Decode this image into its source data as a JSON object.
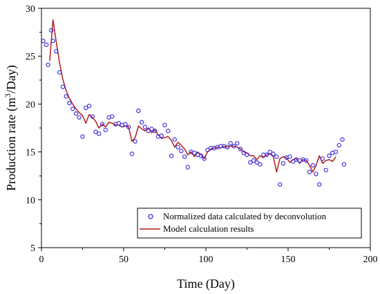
{
  "chart_data": {
    "type": "scatter",
    "xlabel": "Time (Day)",
    "ylabel": "Production rate (m³/Day)",
    "ylabel_parts": {
      "pre": "Production rate (m",
      "sup": "3",
      "post": "/Day)"
    },
    "xlim": [
      0,
      200
    ],
    "ylim": [
      5,
      30
    ],
    "xticks": [
      0,
      50,
      100,
      150,
      200
    ],
    "yticks": [
      5,
      10,
      15,
      20,
      25,
      30
    ],
    "grid": false,
    "legend_position": "bottom-right",
    "series": [
      {
        "name": "Normalized data calculated by deconvolution",
        "kind": "scatter",
        "color": "#3b2fe0",
        "x": [
          1,
          3,
          4,
          6,
          7,
          9,
          11,
          13,
          15,
          17,
          19,
          21,
          23,
          25,
          27,
          29,
          31,
          33,
          35,
          37,
          39,
          41,
          43,
          45,
          47,
          49,
          51,
          53,
          55,
          57,
          59,
          61,
          63,
          65,
          67,
          69,
          71,
          73,
          75,
          77,
          79,
          81,
          83,
          85,
          87,
          89,
          91,
          93,
          95,
          97,
          99,
          101,
          103,
          105,
          107,
          109,
          111,
          113,
          115,
          117,
          119,
          121,
          123,
          125,
          127,
          129,
          131,
          133,
          135,
          137,
          139,
          141,
          143,
          145,
          147,
          149,
          151,
          153,
          155,
          157,
          159,
          161,
          163,
          165,
          167,
          169,
          171,
          173,
          175,
          177,
          179,
          181,
          183,
          184
        ],
        "y": [
          26.6,
          26.2,
          24.1,
          27.7,
          26.6,
          25.5,
          23.3,
          21.8,
          20.8,
          20.1,
          19.5,
          19.0,
          18.6,
          16.6,
          19.6,
          19.8,
          18.7,
          17.1,
          16.9,
          17.9,
          17.3,
          18.6,
          18.7,
          17.9,
          18.0,
          17.8,
          17.9,
          17.6,
          14.8,
          16.1,
          19.3,
          18.1,
          17.6,
          17.2,
          17.4,
          17.2,
          16.6,
          16.7,
          17.8,
          17.2,
          14.6,
          16.3,
          15.5,
          15.1,
          14.5,
          13.4,
          15.0,
          14.9,
          14.7,
          14.6,
          14.3,
          15.2,
          15.4,
          15.4,
          15.5,
          15.6,
          15.6,
          15.5,
          15.9,
          15.6,
          15.9,
          15.3,
          14.9,
          14.7,
          13.9,
          14.1,
          13.9,
          13.7,
          14.7,
          14.7,
          15.0,
          14.8,
          14.5,
          11.6,
          13.8,
          14.4,
          14.5,
          14.0,
          14.2,
          14.1,
          14.2,
          14.1,
          12.9,
          13.6,
          12.7,
          11.6,
          14.3,
          13.1,
          14.6,
          14.9,
          15.0,
          15.7,
          16.3,
          13.7
        ]
      },
      {
        "name": "Model calculation results",
        "kind": "line",
        "color": "#b01c1c",
        "x": [
          5,
          7,
          9,
          11,
          13,
          15,
          17,
          19,
          21,
          23,
          25,
          27,
          29,
          31,
          33,
          35,
          37,
          39,
          41,
          43,
          45,
          47,
          49,
          51,
          53,
          55,
          57,
          59,
          61,
          63,
          65,
          67,
          69,
          71,
          73,
          75,
          77,
          79,
          81,
          83,
          85,
          87,
          89,
          91,
          93,
          95,
          97,
          99,
          101,
          103,
          105,
          107,
          109,
          111,
          113,
          115,
          117,
          119,
          121,
          123,
          125,
          127,
          129,
          131,
          133,
          135,
          137,
          139,
          141,
          143,
          145,
          147,
          149,
          151,
          153,
          155,
          157,
          159,
          161,
          163,
          165,
          167,
          169,
          171,
          173,
          175,
          177,
          179
        ],
        "y": [
          24.5,
          28.8,
          26.5,
          24.3,
          22.6,
          21.4,
          20.6,
          20.0,
          19.5,
          19.1,
          18.8,
          18.0,
          18.9,
          18.6,
          18.2,
          17.5,
          17.9,
          17.6,
          18.1,
          18.0,
          17.8,
          17.8,
          17.6,
          17.7,
          17.6,
          16.1,
          16.5,
          17.7,
          17.4,
          17.2,
          17.5,
          17.0,
          17.3,
          16.8,
          16.4,
          16.5,
          16.6,
          16.2,
          15.5,
          16.0,
          15.7,
          15.3,
          14.7,
          15.0,
          14.5,
          15.0,
          14.7,
          14.3,
          15.0,
          15.3,
          15.4,
          15.5,
          15.4,
          15.6,
          15.5,
          15.6,
          15.6,
          15.5,
          15.3,
          15.0,
          14.9,
          14.6,
          14.6,
          14.2,
          14.6,
          14.4,
          14.7,
          14.8,
          14.5,
          12.9,
          14.3,
          14.5,
          14.4,
          13.9,
          14.2,
          14.3,
          13.8,
          14.2,
          14.1,
          13.6,
          12.9,
          13.6,
          14.6,
          13.8,
          14.1,
          14.2,
          14.0,
          14.5
        ]
      }
    ]
  }
}
